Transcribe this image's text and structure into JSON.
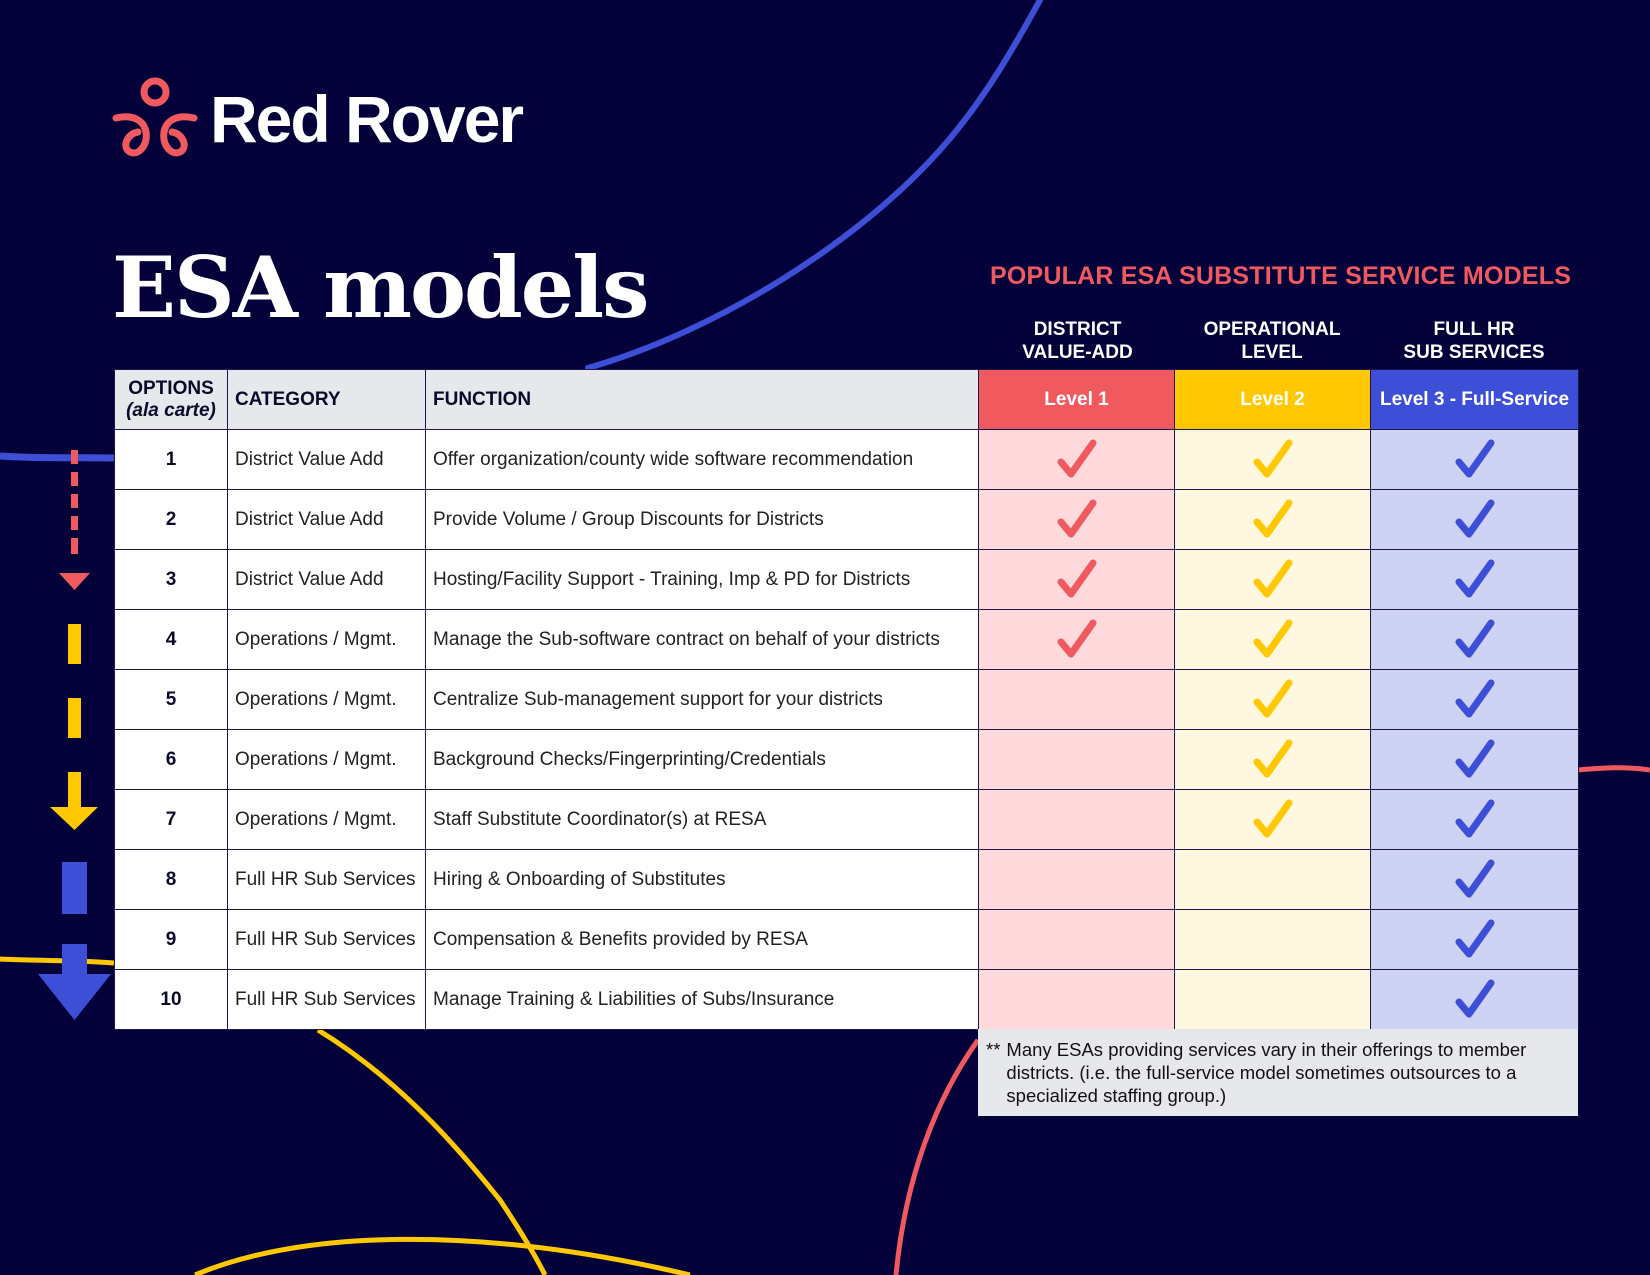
{
  "brand": {
    "name": "Red Rover",
    "logo_icon": "red-rover-logo-icon",
    "colors": {
      "background": "#04003a",
      "red": "#f05a5f",
      "yellow": "#ffc800",
      "blue": "#3d4fd6",
      "red_tint": "#ffd9db",
      "yellow_tint": "#fff7df",
      "blue_tint": "#ced2f3",
      "header_gray": "#e6e8ec"
    }
  },
  "page": {
    "title": "ESA models",
    "subtitle": "POPULAR ESA SUBSTITUTE SERVICE MODELS"
  },
  "levels": [
    {
      "caption_line1": "DISTRICT",
      "caption_line2": "VALUE-ADD",
      "label": "Level 1",
      "color": "#f05a5f"
    },
    {
      "caption_line1": "OPERATIONAL",
      "caption_line2": "LEVEL",
      "label": "Level 2",
      "color": "#ffc800"
    },
    {
      "caption_line1": "FULL HR",
      "caption_line2": "SUB SERVICES",
      "label": "Level 3 - Full-Service",
      "color": "#3d4fd6"
    }
  ],
  "table": {
    "headers": {
      "options": "OPTIONS",
      "options_sub": "(ala carte)",
      "category": "CATEGORY",
      "function": "FUNCTION"
    },
    "rows": [
      {
        "option": "1",
        "category": "District Value Add",
        "function": "Offer organization/county wide software recommendation",
        "level1": true,
        "level2": true,
        "level3": true
      },
      {
        "option": "2",
        "category": "District Value Add",
        "function": "Provide Volume / Group Discounts for Districts",
        "level1": true,
        "level2": true,
        "level3": true
      },
      {
        "option": "3",
        "category": "District Value Add",
        "function": "Hosting/Facility Support - Training, Imp & PD for Districts",
        "level1": true,
        "level2": true,
        "level3": true
      },
      {
        "option": "4",
        "category": "Operations / Mgmt.",
        "function": "Manage the Sub-software contract on behalf of your districts",
        "level1": true,
        "level2": true,
        "level3": true
      },
      {
        "option": "5",
        "category": "Operations / Mgmt.",
        "function": "Centralize Sub-management support for your districts",
        "level1": false,
        "level2": true,
        "level3": true
      },
      {
        "option": "6",
        "category": "Operations / Mgmt.",
        "function": "Background Checks/Fingerprinting/Credentials",
        "level1": false,
        "level2": true,
        "level3": true
      },
      {
        "option": "7",
        "category": "Operations / Mgmt.",
        "function": "Staff Substitute Coordinator(s) at RESA",
        "level1": false,
        "level2": true,
        "level3": true
      },
      {
        "option": "8",
        "category": "Full HR Sub Services",
        "function": "Hiring & Onboarding of Substitutes",
        "level1": false,
        "level2": false,
        "level3": true
      },
      {
        "option": "9",
        "category": "Full HR Sub Services",
        "function": "Compensation & Benefits provided by RESA",
        "level1": false,
        "level2": false,
        "level3": true
      },
      {
        "option": "10",
        "category": "Full HR Sub Services",
        "function": "Manage Training & Liabilities of Subs/Insurance",
        "level1": false,
        "level2": false,
        "level3": true
      }
    ]
  },
  "footnote": {
    "marker": "**",
    "text": "Many ESAs providing services vary in their offerings to member districts. (i.e. the full-service model sometimes outsources to a specialized staffing group.)"
  },
  "icons": {
    "check": "checkmark-icon",
    "arrow": "arrow-down-icon"
  }
}
